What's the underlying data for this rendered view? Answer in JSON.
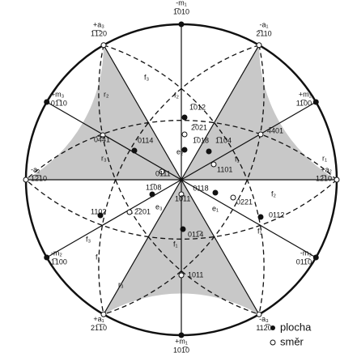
{
  "edge": [
    {
      "name": "-m₁",
      "index": "1̅010"
    },
    {
      "name": "-a₁",
      "index": "2̅110"
    },
    {
      "name": "+m₂",
      "index": "11̅00"
    },
    {
      "name": "+a₂",
      "index": "12̅10"
    },
    {
      "name": "-m₃",
      "index": "011̅0"
    },
    {
      "name": "-a₃",
      "index": "112̅0"
    },
    {
      "name": "+m₁",
      "index": "101̅0"
    },
    {
      "name": "+a₁",
      "index": "21̅1̅0"
    },
    {
      "name": "-m₂",
      "index": "1̅100"
    },
    {
      "name": "-a₂",
      "index": "1̅2̅10"
    },
    {
      "name": "+m₃",
      "index": "01̅10"
    },
    {
      "name": "+a₃",
      "index": "1̅1̅20"
    }
  ],
  "points": [
    "1̅012",
    "2̅021",
    "1̅018",
    "1̅104",
    "4̅401",
    "1101",
    "0118",
    "0221",
    "0112",
    "0̅4̅41",
    "0114",
    "0111",
    "11̅08",
    "2̅201",
    "1102",
    "10̅11",
    "011̅4",
    "1011"
  ],
  "letters": [
    "f₂",
    "f₃",
    "r₂",
    "r₃",
    "e₂",
    "e₃",
    "f₁",
    "e₁",
    "f₂",
    "f₁",
    "f₃",
    "f₁",
    "f₁",
    "r₃",
    "r₁"
  ],
  "legend": {
    "plane": "plocha",
    "direction": "směr"
  }
}
